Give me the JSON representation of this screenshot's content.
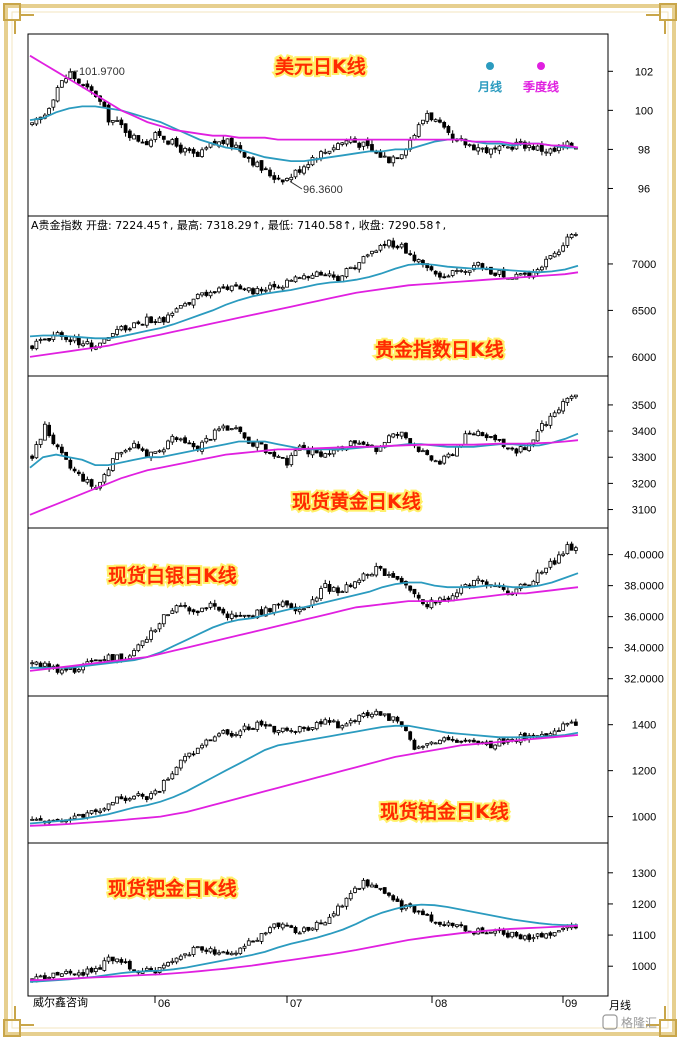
{
  "colors": {
    "background": "#ffffff",
    "frame": "#e6cf8f",
    "frame_corner": "#c9a64a",
    "grid_border": "#000000",
    "candle": "#000000",
    "ma_month": "#2b9bbf",
    "ma_quarter": "#e020e0",
    "title_fill": "#ff2a00",
    "title_glow": "#fff06a"
  },
  "legend": {
    "month_label": "月线",
    "quarter_label": "季度线",
    "month_icon": "cyan-ball-icon",
    "quarter_icon": "magenta-ball-icon"
  },
  "footer": {
    "source": "威尔鑫咨询",
    "period": "月线",
    "watermark": "格隆汇"
  },
  "x_axis": {
    "labels": [
      "06",
      "07",
      "08",
      "09"
    ]
  },
  "chart_data": [
    {
      "type": "candlestick",
      "title": "美元日K线",
      "yticks": [
        96,
        98,
        100,
        102
      ],
      "ylim": [
        95,
        103.5
      ],
      "annotations": [
        {
          "text": "101.9700",
          "value": 101.97
        },
        {
          "text": "96.3600",
          "value": 96.36
        }
      ],
      "close_path": [
        99.2,
        99.8,
        101.2,
        101.9,
        101.2,
        100.8,
        99.6,
        99.2,
        98.6,
        98.4,
        98.8,
        98.3,
        97.9,
        97.6,
        98.2,
        98.4,
        98.2,
        97.6,
        97.0,
        96.6,
        96.5,
        97.0,
        97.6,
        97.9,
        98.3,
        98.5,
        98.2,
        97.8,
        97.5,
        97.9,
        98.8,
        99.9,
        99.2,
        98.4,
        98.3,
        98.1,
        97.9,
        98.0,
        98.3,
        98.2,
        98.0,
        97.9,
        98.2
      ],
      "ma_month": [
        99.5,
        99.6,
        99.9,
        100.1,
        100.2,
        100.2,
        100.1,
        100.0,
        99.8,
        99.6,
        99.4,
        99.1,
        98.8,
        98.5,
        98.3,
        98.1,
        98.0,
        97.8,
        97.6,
        97.5,
        97.4,
        97.4,
        97.5,
        97.6,
        97.7,
        97.8,
        97.9,
        97.9,
        98.0,
        98.0,
        98.2,
        98.4,
        98.5,
        98.5,
        98.4,
        98.3,
        98.3,
        98.2,
        98.3,
        98.3,
        98.2,
        98.1,
        98.1
      ],
      "ma_quarter": [
        102.8,
        102.4,
        102.0,
        101.6,
        101.2,
        100.8,
        100.4,
        100.0,
        99.7,
        99.4,
        99.2,
        99.0,
        98.9,
        98.8,
        98.7,
        98.7,
        98.6,
        98.6,
        98.6,
        98.5,
        98.5,
        98.5,
        98.5,
        98.5,
        98.5,
        98.5,
        98.5,
        98.5,
        98.5,
        98.5,
        98.5,
        98.5,
        98.5,
        98.5,
        98.4,
        98.4,
        98.4,
        98.3,
        98.3,
        98.3,
        98.2,
        98.2,
        98.1
      ]
    },
    {
      "type": "candlestick",
      "title": "贵金指数日K线",
      "info_line": "A贵金指数  开盘: 7224.45↑, 最高: 7318.29↑, 最低: 7140.58↑, 收盘: 7290.58↑,",
      "yticks": [
        6000,
        6500,
        7000
      ],
      "ylim": [
        5880,
        7430
      ],
      "close_path": [
        6120,
        6180,
        6250,
        6200,
        6150,
        6120,
        6200,
        6300,
        6350,
        6400,
        6380,
        6450,
        6550,
        6650,
        6700,
        6750,
        6780,
        6720,
        6700,
        6760,
        6800,
        6850,
        6900,
        6880,
        6850,
        6950,
        7050,
        7150,
        7230,
        7180,
        7050,
        6950,
        6850,
        6900,
        6950,
        6980,
        6920,
        6880,
        6850,
        6900,
        7000,
        7100,
        7280
      ],
      "ma_month": [
        6220,
        6230,
        6230,
        6220,
        6210,
        6200,
        6200,
        6220,
        6250,
        6280,
        6310,
        6350,
        6400,
        6450,
        6500,
        6560,
        6610,
        6650,
        6680,
        6700,
        6720,
        6750,
        6780,
        6800,
        6810,
        6830,
        6860,
        6900,
        6950,
        6990,
        7000,
        6990,
        6970,
        6960,
        6950,
        6950,
        6940,
        6930,
        6920,
        6910,
        6920,
        6940,
        6980
      ],
      "ma_quarter": [
        6000,
        6020,
        6040,
        6060,
        6080,
        6100,
        6120,
        6150,
        6180,
        6210,
        6240,
        6270,
        6300,
        6330,
        6360,
        6390,
        6420,
        6450,
        6480,
        6510,
        6540,
        6570,
        6600,
        6630,
        6660,
        6690,
        6710,
        6730,
        6750,
        6770,
        6780,
        6790,
        6800,
        6810,
        6820,
        6830,
        6840,
        6850,
        6860,
        6870,
        6880,
        6890,
        6910
      ]
    },
    {
      "type": "candlestick",
      "title": "现货黄金日K线",
      "yticks": [
        3100,
        3200,
        3300,
        3400,
        3500
      ],
      "ylim": [
        3060,
        3580
      ],
      "close_path": [
        3300,
        3420,
        3330,
        3260,
        3220,
        3180,
        3260,
        3330,
        3350,
        3300,
        3320,
        3380,
        3350,
        3340,
        3380,
        3420,
        3400,
        3360,
        3340,
        3300,
        3280,
        3330,
        3320,
        3310,
        3330,
        3350,
        3340,
        3330,
        3380,
        3390,
        3350,
        3300,
        3280,
        3320,
        3380,
        3400,
        3380,
        3340,
        3320,
        3350,
        3420,
        3460,
        3530
      ],
      "ma_month": [
        3260,
        3300,
        3310,
        3300,
        3290,
        3270,
        3270,
        3280,
        3290,
        3300,
        3300,
        3310,
        3320,
        3330,
        3340,
        3350,
        3360,
        3360,
        3360,
        3350,
        3340,
        3330,
        3330,
        3330,
        3330,
        3335,
        3340,
        3340,
        3345,
        3350,
        3350,
        3345,
        3340,
        3340,
        3340,
        3345,
        3350,
        3350,
        3345,
        3345,
        3355,
        3370,
        3390
      ],
      "ma_quarter": [
        3080,
        3100,
        3120,
        3140,
        3160,
        3180,
        3200,
        3220,
        3235,
        3250,
        3260,
        3270,
        3280,
        3290,
        3300,
        3310,
        3315,
        3320,
        3325,
        3330,
        3330,
        3332,
        3334,
        3336,
        3338,
        3340,
        3340,
        3342,
        3344,
        3346,
        3348,
        3348,
        3348,
        3348,
        3348,
        3350,
        3352,
        3352,
        3352,
        3354,
        3356,
        3360,
        3365
      ]
    },
    {
      "type": "candlestick",
      "title": "现货白银日K线",
      "yticks": [
        "32.0000",
        "34.0000",
        "36.0000",
        "38.0000",
        "40.0000"
      ],
      "ylim": [
        31.4,
        41.2
      ],
      "close_path": [
        33.0,
        32.8,
        32.6,
        32.5,
        32.8,
        33.2,
        33.4,
        33.3,
        33.8,
        34.6,
        35.6,
        36.5,
        36.6,
        36.4,
        36.8,
        36.2,
        35.9,
        36.0,
        36.3,
        36.6,
        36.8,
        36.5,
        37.0,
        38.0,
        37.6,
        38.1,
        38.6,
        39.0,
        38.8,
        38.2,
        37.6,
        36.8,
        37.0,
        37.5,
        38.0,
        38.2,
        37.9,
        37.6,
        37.7,
        38.2,
        38.8,
        39.6,
        40.4
      ],
      "ma_month": [
        32.7,
        32.7,
        32.7,
        32.7,
        32.8,
        32.9,
        33.0,
        33.1,
        33.2,
        33.4,
        33.7,
        34.1,
        34.5,
        34.9,
        35.3,
        35.6,
        35.8,
        35.9,
        36.1,
        36.3,
        36.5,
        36.6,
        36.8,
        37.0,
        37.2,
        37.4,
        37.6,
        37.9,
        38.1,
        38.2,
        38.2,
        38.0,
        37.9,
        37.9,
        37.9,
        38.0,
        38.0,
        37.9,
        37.9,
        38.0,
        38.2,
        38.5,
        38.8
      ],
      "ma_quarter": [
        32.5,
        32.6,
        32.7,
        32.8,
        32.9,
        33.0,
        33.1,
        33.2,
        33.3,
        33.4,
        33.6,
        33.8,
        34.0,
        34.2,
        34.4,
        34.6,
        34.8,
        35.0,
        35.2,
        35.4,
        35.6,
        35.8,
        36.0,
        36.2,
        36.4,
        36.6,
        36.7,
        36.8,
        36.9,
        37.0,
        37.0,
        37.0,
        37.0,
        37.1,
        37.2,
        37.3,
        37.4,
        37.5,
        37.5,
        37.6,
        37.7,
        37.8,
        37.9
      ]
    },
    {
      "type": "candlestick",
      "title": "现货铂金日K线",
      "yticks": [
        1000,
        1200,
        1400
      ],
      "ylim": [
        920,
        1490
      ],
      "close_path": [
        980,
        985,
        990,
        995,
        1000,
        1020,
        1060,
        1080,
        1090,
        1085,
        1120,
        1200,
        1260,
        1300,
        1340,
        1370,
        1360,
        1390,
        1400,
        1380,
        1370,
        1380,
        1390,
        1410,
        1400,
        1420,
        1440,
        1450,
        1430,
        1400,
        1300,
        1320,
        1330,
        1340,
        1330,
        1320,
        1310,
        1330,
        1340,
        1350,
        1360,
        1380,
        1400
      ],
      "ma_month": [
        970,
        975,
        980,
        985,
        990,
        1000,
        1010,
        1025,
        1040,
        1050,
        1065,
        1085,
        1110,
        1140,
        1170,
        1200,
        1230,
        1260,
        1290,
        1310,
        1320,
        1330,
        1340,
        1350,
        1360,
        1370,
        1380,
        1390,
        1395,
        1395,
        1385,
        1375,
        1365,
        1360,
        1355,
        1350,
        1345,
        1345,
        1345,
        1348,
        1350,
        1355,
        1365
      ],
      "ma_quarter": [
        960,
        962,
        965,
        968,
        972,
        976,
        980,
        985,
        990,
        995,
        1000,
        1010,
        1020,
        1035,
        1050,
        1065,
        1080,
        1095,
        1110,
        1125,
        1140,
        1155,
        1170,
        1185,
        1200,
        1215,
        1230,
        1245,
        1260,
        1270,
        1280,
        1290,
        1300,
        1310,
        1315,
        1320,
        1325,
        1330,
        1335,
        1340,
        1345,
        1350,
        1355
      ]
    },
    {
      "type": "candlestick",
      "title": "现货钯金日K线",
      "yticks": [
        1000,
        1100,
        1200,
        1300
      ],
      "ylim": [
        930,
        1370
      ],
      "close_path": [
        960,
        965,
        970,
        975,
        980,
        990,
        1020,
        1010,
        990,
        985,
        990,
        1010,
        1040,
        1060,
        1050,
        1040,
        1050,
        1080,
        1100,
        1140,
        1120,
        1110,
        1130,
        1150,
        1190,
        1230,
        1270,
        1250,
        1220,
        1190,
        1180,
        1160,
        1140,
        1130,
        1120,
        1110,
        1110,
        1105,
        1100,
        1095,
        1100,
        1110,
        1130
      ],
      "ma_month": [
        950,
        952,
        955,
        958,
        962,
        966,
        972,
        978,
        982,
        984,
        986,
        990,
        996,
        1004,
        1012,
        1020,
        1028,
        1036,
        1046,
        1060,
        1072,
        1082,
        1092,
        1104,
        1118,
        1136,
        1156,
        1172,
        1184,
        1194,
        1198,
        1196,
        1190,
        1182,
        1174,
        1166,
        1158,
        1150,
        1144,
        1138,
        1134,
        1132,
        1132
      ],
      "ma_quarter": [
        955,
        956,
        958,
        960,
        962,
        964,
        966,
        968,
        970,
        972,
        974,
        977,
        980,
        984,
        988,
        992,
        997,
        1002,
        1008,
        1014,
        1020,
        1026,
        1032,
        1038,
        1045,
        1052,
        1060,
        1068,
        1076,
        1084,
        1090,
        1096,
        1101,
        1106,
        1110,
        1114,
        1118,
        1120,
        1122,
        1124,
        1126,
        1128,
        1130
      ]
    }
  ]
}
